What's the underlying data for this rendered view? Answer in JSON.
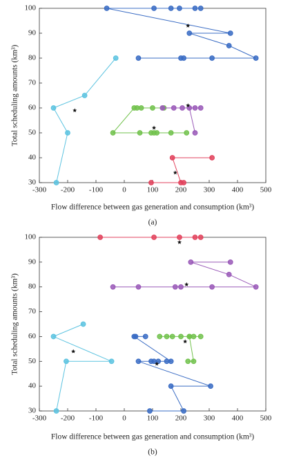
{
  "chart_data": [
    {
      "type": "line",
      "xlabel": "Flow difference between gas generation and consumption (km³)",
      "ylabel": "Total scheduling amounts (km³)",
      "caption": "(a)",
      "xlim": [
        -300,
        500
      ],
      "ylim": [
        30,
        100
      ],
      "xticks": [
        -300,
        -200,
        -100,
        0,
        100,
        200,
        300,
        400,
        500
      ],
      "yticks": [
        30,
        40,
        50,
        60,
        70,
        80,
        90,
        100
      ],
      "series": [
        {
          "color": "#3a6cc4",
          "marker": "circle",
          "line": true,
          "x": [
            270,
            250,
            195,
            165,
            105,
            -62,
            375,
            230,
            370,
            465,
            310,
            210,
            200,
            50
          ],
          "y": [
            100,
            100,
            100,
            100,
            100,
            100,
            90,
            90,
            85,
            80,
            80,
            80,
            80,
            80
          ]
        },
        {
          "color": "#5cc3e0",
          "marker": "circle",
          "line": true,
          "x": [
            -30,
            -140,
            -250,
            -200,
            -240
          ],
          "y": [
            80,
            65,
            60,
            50,
            30
          ]
        },
        {
          "color": "#72c24d",
          "marker": "circle",
          "line": true,
          "x": [
            140,
            100,
            60,
            45,
            35,
            -40,
            55,
            95,
            105,
            115,
            165,
            220
          ],
          "y": [
            60,
            60,
            60,
            60,
            60,
            50,
            50,
            50,
            50,
            50,
            50,
            50
          ]
        },
        {
          "color": "#9a5ab8",
          "marker": "circle",
          "line": true,
          "x": [
            135,
            175,
            205,
            270,
            250,
            230,
            250
          ],
          "y": [
            60,
            60,
            60,
            60,
            60,
            60,
            50
          ]
        },
        {
          "color": "#e2425c",
          "marker": "circle",
          "line": true,
          "x": [
            310,
            170,
            200,
            95,
            210
          ],
          "y": [
            40,
            40,
            30,
            30,
            30
          ]
        },
        {
          "color": "#111111",
          "marker": "star",
          "line": false,
          "x": [
            225,
            -175,
            225,
            105,
            180
          ],
          "y": [
            93,
            59,
            61,
            52,
            34
          ]
        }
      ]
    },
    {
      "type": "line",
      "xlabel": "Flow difference between gas generation and consumption (km³)",
      "ylabel": "Total scheduling amounts (km³)",
      "caption": "(b)",
      "xlim": [
        -300,
        500
      ],
      "ylim": [
        30,
        100
      ],
      "xticks": [
        -300,
        -200,
        -100,
        0,
        100,
        200,
        300,
        400,
        500
      ],
      "yticks": [
        30,
        40,
        50,
        60,
        70,
        80,
        90,
        100
      ],
      "series": [
        {
          "color": "#e2425c",
          "marker": "circle",
          "line": true,
          "x": [
            -85,
            105,
            195,
            250,
            270
          ],
          "y": [
            100,
            100,
            100,
            100,
            100
          ]
        },
        {
          "color": "#9a5ab8",
          "marker": "circle",
          "line": true,
          "x": [
            375,
            235,
            370,
            465,
            310,
            200,
            180,
            50,
            -40
          ],
          "y": [
            90,
            90,
            85,
            80,
            80,
            80,
            80,
            80,
            80
          ]
        },
        {
          "color": "#5cc3e0",
          "marker": "circle",
          "line": true,
          "x": [
            -145,
            -250,
            -45,
            -205,
            -240
          ],
          "y": [
            65,
            60,
            50,
            50,
            30
          ]
        },
        {
          "color": "#72c24d",
          "marker": "circle",
          "line": true,
          "x": [
            270,
            245,
            230,
            200,
            170,
            150,
            125,
            230,
            245,
            225
          ],
          "y": [
            60,
            60,
            60,
            60,
            60,
            60,
            60,
            60,
            50,
            50
          ]
        },
        {
          "color": "#3a6cc4",
          "marker": "circle",
          "line": true,
          "x": [
            75,
            40,
            35,
            165,
            150,
            120,
            105,
            95,
            50,
            305,
            165,
            210,
            90
          ],
          "y": [
            60,
            60,
            60,
            50,
            50,
            50,
            50,
            50,
            50,
            40,
            40,
            30,
            30
          ]
        },
        {
          "color": "#111111",
          "marker": "star",
          "line": false,
          "x": [
            195,
            220,
            -180,
            215,
            115
          ],
          "y": [
            98,
            81,
            54,
            58,
            49
          ]
        }
      ]
    }
  ]
}
